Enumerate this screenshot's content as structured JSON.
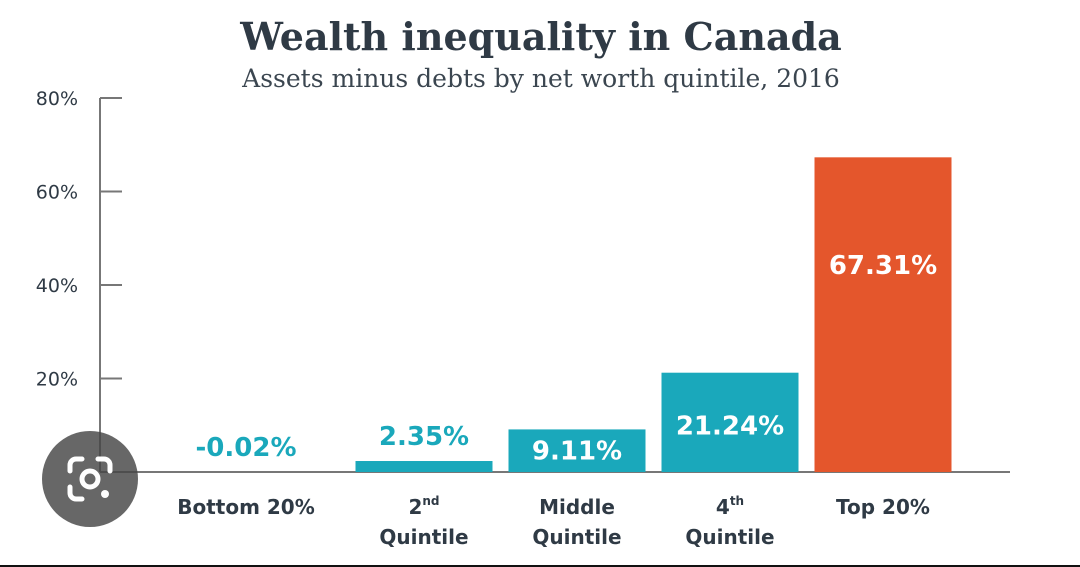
{
  "chart_data": {
    "type": "bar",
    "title": "Wealth inequality in Canada",
    "subtitle": "Assets minus debts by net worth quintile, 2016",
    "categories": [
      {
        "main": "Bottom 20%",
        "sup": "",
        "line2": ""
      },
      {
        "main": "2",
        "sup": "nd",
        "line2": "Quintile"
      },
      {
        "main": "Middle",
        "sup": "",
        "line2": "Quintile"
      },
      {
        "main": "4",
        "sup": "th",
        "line2": "Quintile"
      },
      {
        "main": "Top 20%",
        "sup": "",
        "line2": ""
      }
    ],
    "values": [
      -0.02,
      2.35,
      9.11,
      21.24,
      67.31
    ],
    "data_labels": [
      "-0.02%",
      "2.35%",
      "9.11%",
      "21.24%",
      "67.31%"
    ],
    "ylim": [
      0,
      80
    ],
    "yticks": [
      20,
      40,
      60,
      80
    ],
    "ytick_labels": [
      "20%",
      "40%",
      "60%",
      "80%"
    ],
    "grid": false,
    "colors": {
      "bar": "#1aa8bb",
      "highlight": "#e4562c",
      "label_on_bar": "#ffffff",
      "label_above_bar": "#1aa8bb",
      "axis": "#777777"
    }
  },
  "overlay": {
    "icon": "google-lens-icon"
  }
}
